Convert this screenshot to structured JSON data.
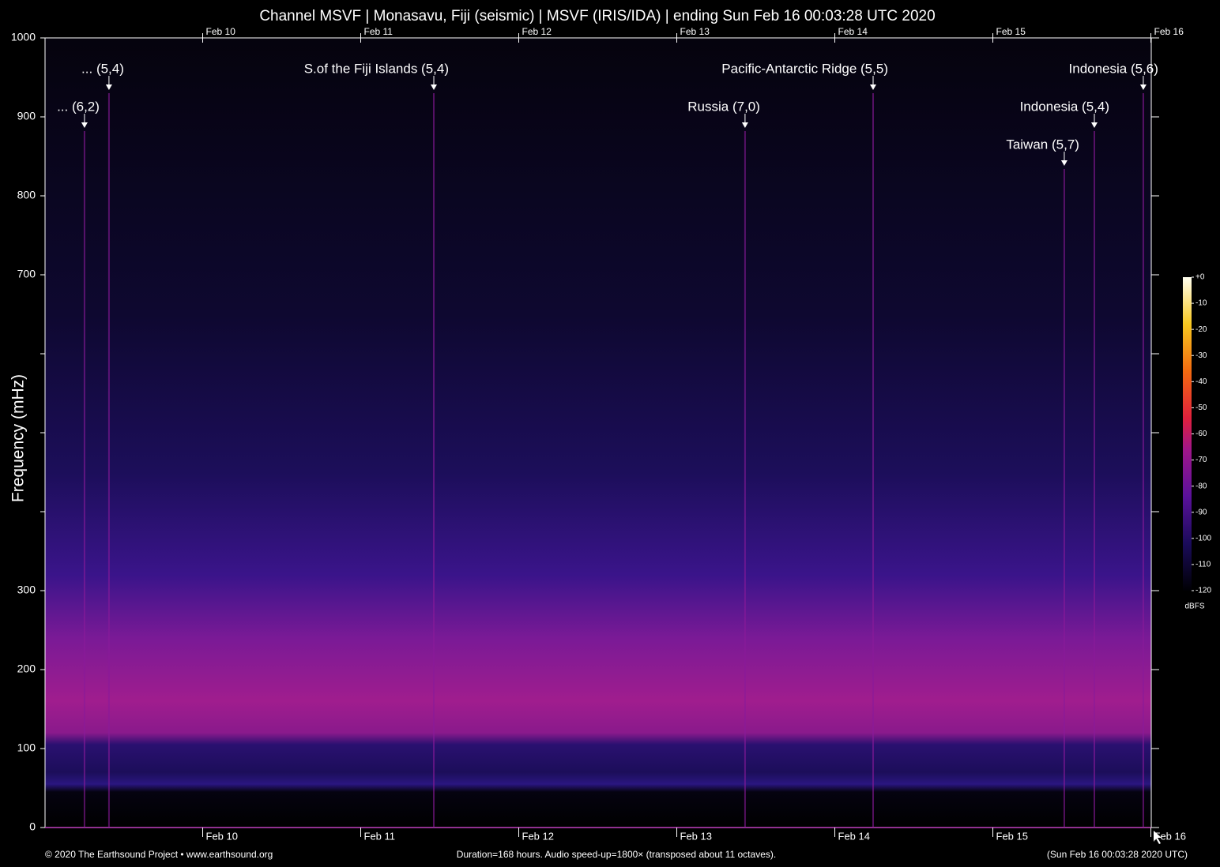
{
  "chart_data": {
    "type": "spectrogram",
    "title": "Channel MSVF | Monasavu, Fiji (seismic) | MSVF (IRIS/IDA) | ending Sun Feb 16 00:03:28 UTC 2020",
    "y_label": "Frequency (mHz)",
    "ylim": [
      0,
      1000
    ],
    "yticks": [
      0,
      100,
      200,
      300,
      700,
      800,
      900,
      1000
    ],
    "minor_yticks": [
      400,
      500,
      600
    ],
    "xlim": [
      "2020-02-09 00:03:28",
      "2020-02-16 00:03:28"
    ],
    "xticks": [
      {
        "value": "2020-02-10",
        "label": "Feb 10"
      },
      {
        "value": "2020-02-11",
        "label": "Feb 11"
      },
      {
        "value": "2020-02-12",
        "label": "Feb 12"
      },
      {
        "value": "2020-02-13",
        "label": "Feb 13"
      },
      {
        "value": "2020-02-14",
        "label": "Feb 14"
      },
      {
        "value": "2020-02-15",
        "label": "Feb 15"
      },
      {
        "value": "2020-02-16",
        "label": "Feb 16"
      }
    ],
    "annotations": [
      {
        "text": "... (5,4)",
        "x": "2020-02-09 09:46"
      },
      {
        "text": "... (6,2)",
        "x": "2020-02-09 06:03"
      },
      {
        "text": "S.of the Fiji Islands (5,4)",
        "x": "2020-02-11 11:06"
      },
      {
        "text": "Pacific-Antarctic Ridge (5,5)",
        "x": "2020-02-14 05:49"
      },
      {
        "text": "Russia (7,0)",
        "x": "2020-02-13 10:22"
      },
      {
        "text": "Indonesia (5,6)",
        "x": "2020-02-15 22:51"
      },
      {
        "text": "Indonesia (5,4)",
        "x": "2020-02-15 15:25"
      },
      {
        "text": "Taiwan (5,7)",
        "x": "2020-02-15 10:51"
      }
    ],
    "colorbar": {
      "label": "dBFS",
      "lim": [
        -120,
        0
      ],
      "ticks": [
        {
          "value": 0,
          "label": "+0"
        },
        -10,
        -20,
        -30,
        -40,
        -50,
        -60,
        -70,
        -80,
        -90,
        -100,
        -110,
        -120
      ]
    },
    "credits": {
      "left": "© 2020 The Earthsound Project • www.earthsound.org",
      "center": "Duration=168 hours. Audio speed-up=1800× (transposed about 11 octaves).",
      "right": "(Sun Feb 16 00:03:28 2020 UTC)"
    }
  }
}
